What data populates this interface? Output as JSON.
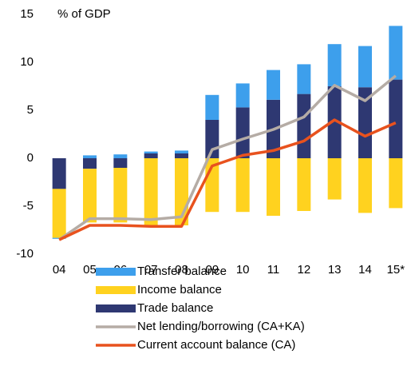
{
  "chart_data": {
    "type": "bar",
    "title": "% of GDP",
    "categories": [
      "04",
      "05",
      "06",
      "07",
      "08",
      "09",
      "10",
      "11",
      "12",
      "13",
      "14",
      "15*"
    ],
    "series": [
      {
        "name": "Transfer balance",
        "type": "bar",
        "color": "#3d9fec",
        "values": [
          -0.1,
          0.3,
          0.4,
          0.2,
          0.3,
          2.6,
          2.5,
          3.1,
          3.1,
          4.4,
          4.3,
          5.6
        ]
      },
      {
        "name": "Income balance",
        "type": "bar",
        "color": "#ffd21f",
        "values": [
          -5.1,
          -5.6,
          -5.7,
          -7.0,
          -7.0,
          -5.6,
          -5.6,
          -6.0,
          -5.5,
          -4.3,
          -5.7,
          -5.2
        ]
      },
      {
        "name": "Trade balance",
        "type": "bar",
        "color": "#2e3872",
        "values": [
          -3.2,
          -1.1,
          -1.0,
          0.5,
          0.5,
          4.0,
          5.3,
          6.1,
          6.7,
          7.5,
          7.4,
          8.2
        ]
      },
      {
        "name": "Net lending/borrowing (CA+KA)",
        "type": "line",
        "color": "#b5aca5",
        "values": [
          -8.5,
          -6.3,
          -6.3,
          -6.4,
          -6.1,
          0.9,
          2.0,
          3.0,
          4.3,
          7.6,
          6.0,
          8.6
        ]
      },
      {
        "name": "Current account balance (CA)",
        "type": "line",
        "color": "#e8521e",
        "values": [
          -8.5,
          -7.0,
          -7.0,
          -7.1,
          -7.1,
          -0.8,
          0.3,
          0.8,
          1.8,
          4.0,
          2.3,
          3.7
        ]
      }
    ],
    "ylim": [
      -10,
      15
    ],
    "yticks": [
      -10,
      -5,
      0,
      5,
      10,
      15
    ]
  }
}
